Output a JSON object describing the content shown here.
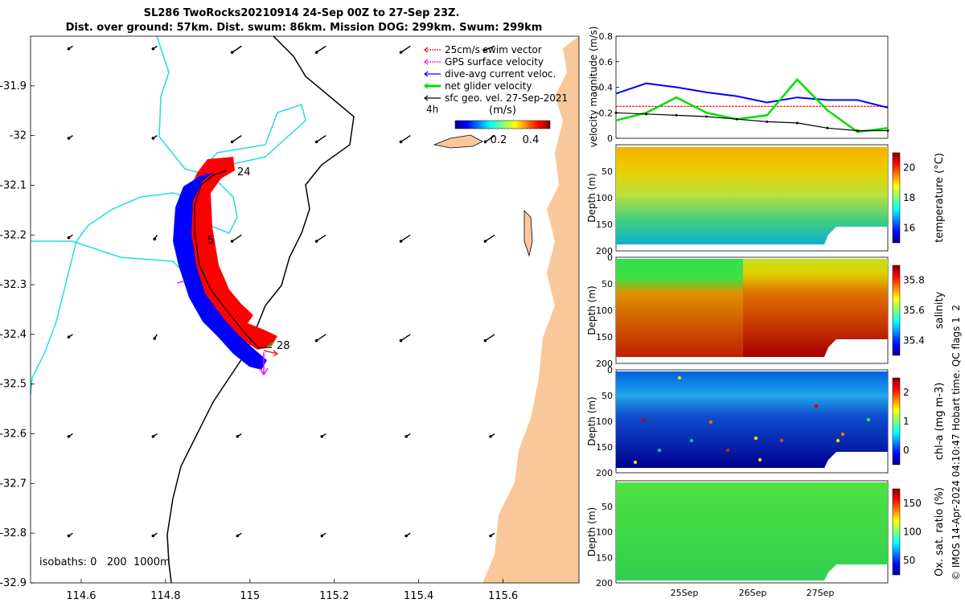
{
  "title_line1": "SL286 TwoRocks20210914 24-Sep 00Z to 27-Sep 23Z.",
  "title_line2": "Dist. over ground: 57km. Dist. swum: 86km. Mission DOG: 299km. Swum: 299km",
  "map": {
    "x_ticks": [
      "114.6",
      "114.8",
      "115",
      "115.2",
      "115.4",
      "115.6"
    ],
    "y_ticks": [
      "-31.9",
      "-32",
      "-32.1",
      "-32.2",
      "-32.3",
      "-32.4",
      "-32.5",
      "-32.6",
      "-32.7",
      "-32.8",
      "-32.9"
    ],
    "legend": [
      {
        "label": "25cm/s swim vector",
        "color": "#ff0000"
      },
      {
        "label": "GPS surface velocity",
        "color": "#ff00ff"
      },
      {
        "label": "dive-avg current veloc.",
        "color": "#0000ff"
      },
      {
        "label": "net glider velocity",
        "color": "#00dd00"
      },
      {
        "label": "sfc geo. vel. 27-Sep-2021",
        "color": "#000000"
      }
    ],
    "colorbar_label": "(m/s)",
    "colorbar_ticks": [
      "0.2",
      "0.4"
    ],
    "time_marker": "4h",
    "day_labels": [
      "24",
      "5",
      "28"
    ],
    "isobaths_label": "isobaths: 0   200  1000m",
    "colors": {
      "land": "#f8c89a",
      "track_red": "#ff0000",
      "track_blue": "#0000ff",
      "isobath_cyan": "#22dddd"
    }
  },
  "velocity_panel": {
    "ylabel": "velocity magnitude (m/s)",
    "y_ticks": [
      "0",
      "0.2",
      "0.4",
      "0.6",
      "0.8"
    ]
  },
  "section_panels": [
    {
      "name": "temperature",
      "cb_label": "temperature (°C)",
      "cb_ticks": [
        "16",
        "18",
        "20"
      ],
      "y_ticks": [
        "50",
        "100",
        "150",
        "200"
      ],
      "ylabel": "Depth (m)"
    },
    {
      "name": "salinity",
      "cb_label": "salinity",
      "cb_ticks": [
        "35.4",
        "35.6",
        "35.8"
      ],
      "y_ticks": [
        "0",
        "50",
        "100",
        "150",
        "200"
      ],
      "ylabel": "Depth (m)"
    },
    {
      "name": "chla",
      "cb_label": "chl-a (mg m-3)",
      "cb_ticks": [
        "0",
        "1",
        "2"
      ],
      "y_ticks": [
        "0",
        "50",
        "100",
        "150",
        "200"
      ],
      "ylabel": "Depth (m)"
    },
    {
      "name": "oxygen",
      "cb_label": "Ox. sat. ratio (%)",
      "cb_ticks": [
        "50",
        "100",
        "150"
      ],
      "y_ticks": [
        "50",
        "100",
        "150",
        "200"
      ],
      "ylabel": "Depth (m)"
    }
  ],
  "time_ticks": [
    "25Sep",
    "26Sep",
    "27Sep"
  ],
  "footer": "© IMOS 14-Apr-2024 04:10:47 Hobart time. QC flags 1  2",
  "chart_data": [
    {
      "type": "line",
      "title": "velocity magnitude",
      "ylabel": "velocity magnitude (m/s)",
      "ylim": [
        0,
        0.8
      ],
      "x": [
        "24-Sep 00Z",
        "24-Sep 12Z",
        "25-Sep 00Z",
        "25-Sep 12Z",
        "26-Sep 00Z",
        "26-Sep 12Z",
        "27-Sep 00Z",
        "27-Sep 06Z",
        "27-Sep 12Z",
        "27-Sep 23Z"
      ],
      "series": [
        {
          "name": "25cm/s swim vector",
          "color": "#ff0000",
          "values": [
            0.25,
            0.25,
            0.25,
            0.25,
            0.25,
            0.25,
            0.25,
            0.25,
            0.25,
            0.25
          ]
        },
        {
          "name": "dive-avg current veloc.",
          "color": "#0000ff",
          "values": [
            0.35,
            0.43,
            0.4,
            0.36,
            0.33,
            0.28,
            0.32,
            0.3,
            0.3,
            0.24
          ]
        },
        {
          "name": "net glider velocity",
          "color": "#00dd00",
          "values": [
            0.14,
            0.2,
            0.32,
            0.2,
            0.15,
            0.18,
            0.46,
            0.22,
            0.05,
            0.08
          ]
        },
        {
          "name": "sfc geo. vel. 27-Sep-2021",
          "color": "#000000",
          "values": [
            0.2,
            0.19,
            0.18,
            0.17,
            0.15,
            0.13,
            0.12,
            0.08,
            0.06,
            0.06
          ]
        }
      ]
    },
    {
      "type": "scatter",
      "title": "glider track",
      "xlim": [
        114.48,
        115.78
      ],
      "ylim": [
        -32.9,
        -31.8
      ],
      "series": [
        {
          "name": "glider track",
          "x": [
            114.96,
            114.93,
            114.9,
            114.86,
            114.85,
            114.87,
            114.91,
            114.97,
            115.01,
            115.04
          ],
          "y": [
            -32.07,
            -32.09,
            -32.11,
            -32.16,
            -32.22,
            -32.3,
            -32.35,
            -32.4,
            -32.43,
            -32.43
          ]
        }
      ]
    }
  ]
}
